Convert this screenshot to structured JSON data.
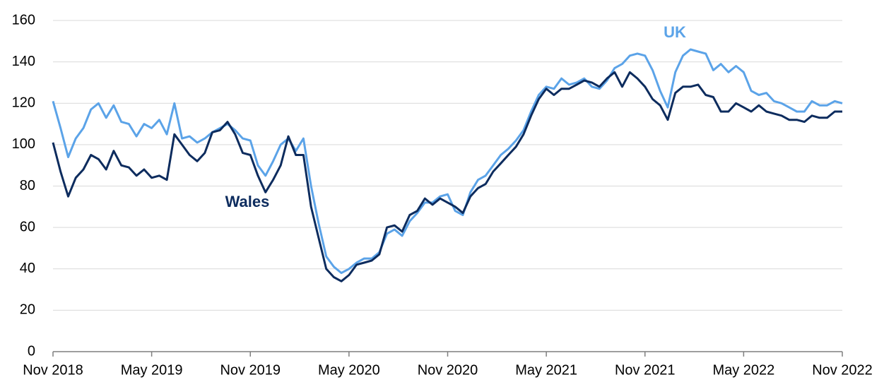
{
  "chart_data": {
    "type": "line",
    "categories": [
      "Nov 2018",
      null,
      null,
      null,
      null,
      null,
      null,
      null,
      null,
      null,
      null,
      null,
      null,
      "May 2019",
      null,
      null,
      null,
      null,
      null,
      null,
      null,
      null,
      null,
      null,
      null,
      null,
      "Nov 2019",
      null,
      null,
      null,
      null,
      null,
      null,
      null,
      null,
      null,
      null,
      null,
      null,
      "May 2020",
      null,
      null,
      null,
      null,
      null,
      null,
      null,
      null,
      null,
      null,
      null,
      null,
      "Nov 2020",
      null,
      null,
      null,
      null,
      null,
      null,
      null,
      null,
      null,
      null,
      null,
      null,
      "May 2021",
      null,
      null,
      null,
      null,
      null,
      null,
      null,
      null,
      null,
      null,
      null,
      null,
      "Nov 2021",
      null,
      null,
      null,
      null,
      null,
      null,
      null,
      null,
      null,
      null,
      null,
      null,
      "May 2022",
      null,
      null,
      null,
      null,
      null,
      null,
      null,
      null,
      null,
      null,
      null,
      null,
      "Nov 2022"
    ],
    "series": [
      {
        "name": "UK",
        "color": "#5ba3e8",
        "values": [
          121,
          108,
          94,
          103,
          108,
          117,
          120,
          113,
          119,
          111,
          110,
          104,
          110,
          108,
          112,
          105,
          120,
          103,
          104,
          101,
          103,
          106,
          108,
          110,
          107,
          103,
          102,
          90,
          85,
          92,
          100,
          103,
          97,
          103,
          80,
          62,
          46,
          41,
          38,
          40,
          43,
          45,
          45,
          48,
          57,
          59,
          56,
          63,
          67,
          72,
          72,
          75,
          76,
          68,
          66,
          77,
          83,
          85,
          90,
          95,
          98,
          102,
          107,
          116,
          124,
          128,
          127,
          132,
          129,
          130,
          132,
          128,
          127,
          131,
          137,
          139,
          143,
          144,
          143,
          136,
          126,
          118,
          135,
          143,
          146,
          145,
          144,
          136,
          139,
          135,
          138,
          135,
          126,
          124,
          125,
          121,
          120,
          118,
          116,
          116,
          121,
          119,
          119,
          121,
          120
        ]
      },
      {
        "name": "Wales",
        "color": "#0d2c5e",
        "values": [
          101,
          87,
          75,
          84,
          88,
          95,
          93,
          88,
          97,
          90,
          89,
          85,
          88,
          84,
          85,
          83,
          105,
          100,
          95,
          92,
          96,
          106,
          107,
          111,
          105,
          96,
          95,
          85,
          77,
          83,
          90,
          104,
          95,
          95,
          70,
          55,
          40,
          36,
          34,
          37,
          42,
          43,
          44,
          47,
          60,
          61,
          58,
          66,
          68,
          74,
          71,
          74,
          72,
          70,
          67,
          75,
          79,
          81,
          87,
          91,
          95,
          99,
          105,
          114,
          122,
          127,
          124,
          127,
          127,
          129,
          131,
          130,
          128,
          132,
          135,
          128,
          135,
          132,
          128,
          122,
          119,
          112,
          125,
          128,
          128,
          129,
          124,
          123,
          116,
          116,
          120,
          118,
          116,
          119,
          116,
          115,
          114,
          112,
          112,
          111,
          114,
          113,
          113,
          116,
          116
        ]
      }
    ],
    "annotations": [
      "UK",
      "Wales"
    ],
    "ylim": [
      0,
      160
    ],
    "yticks": [
      0,
      20,
      40,
      60,
      80,
      100,
      120,
      140,
      160
    ],
    "grid": true
  }
}
